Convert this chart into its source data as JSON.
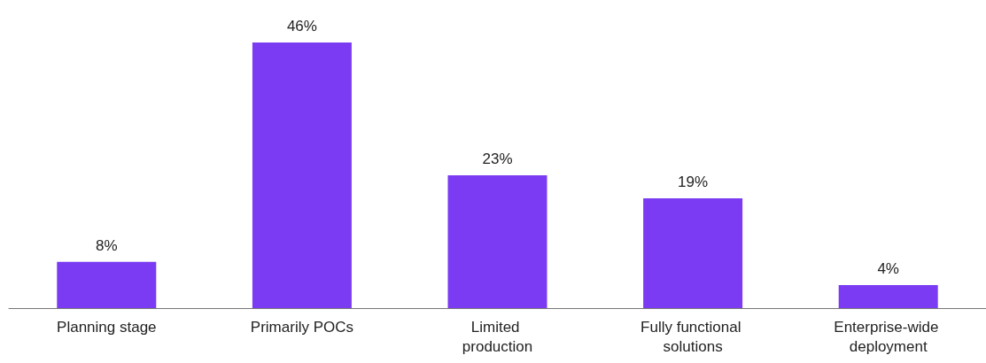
{
  "chart_data": {
    "type": "bar",
    "categories": [
      "Planning stage",
      "Primarily POCs",
      "Limited production",
      "Fully functional solutions",
      "Enterprise-wide deployment"
    ],
    "values": [
      8,
      46,
      23,
      19,
      4
    ],
    "value_labels": [
      "8%",
      "46%",
      "23%",
      "19%",
      "4%"
    ],
    "color": "#7b3bf2"
  }
}
